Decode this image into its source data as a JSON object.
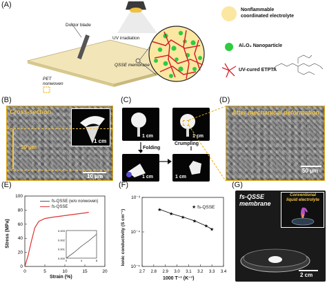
{
  "panels": {
    "a": {
      "label": "(A)",
      "doctor_blade": "Doctor blade",
      "uv": "UV irradiation",
      "qsse": "QSSE membrane",
      "pet": "PET",
      "nonwoven": "nonwoven",
      "legend": {
        "electrolyte_l1": "Nonflammable",
        "electrolyte_l2": "coordinated electrolyte",
        "nano": "Al₂O₃ Nanoparticle",
        "etpta": "UV-cured ETPTA"
      }
    },
    "b": {
      "label": "(B)",
      "title": "Cross-section",
      "inset_scale": "1 cm",
      "thickness": "~ 30 μm",
      "scale": "10 μm"
    },
    "c": {
      "label": "(C)",
      "folding": "Folding",
      "crumpling": "Crumpling",
      "scales": [
        "1 cm",
        "1 cm",
        "1 cm",
        "1 cm"
      ]
    },
    "d": {
      "label": "(D)",
      "title": "After mechanical deformation",
      "scale": "50 μm"
    },
    "e": {
      "label": "(E)",
      "legend": [
        "fs-QSSE (w/o nonwoven)",
        "fs-QSSE"
      ],
      "ylabel": "Stress (MPa)",
      "xlabel": "Strain (%)",
      "yticks": [
        "0",
        "20",
        "40",
        "60",
        "80",
        "100"
      ],
      "xticks": [
        "0",
        "5",
        "10",
        "15",
        "20"
      ],
      "inset_yticks": [
        "0.003",
        "0.002",
        "0.001",
        "0.000"
      ],
      "inset_xticks": [
        "0",
        "4",
        "8"
      ]
    },
    "f": {
      "label": "(F)",
      "legend": "fs-QSSE",
      "ylabel": "Ionic conductivity (S cm⁻¹)",
      "xlabel": "1000 T⁻¹ (K⁻¹)",
      "yticks": [
        "10⁻³",
        "10⁻⁴",
        "10⁻⁵"
      ],
      "xticks": [
        "2.7",
        "2.8",
        "2.9",
        "3.0",
        "3.1",
        "3.2",
        "3.3",
        "3.4"
      ]
    },
    "g": {
      "label": "(G)",
      "membrane_l1": "fs-QSSE",
      "membrane_l2": "membrane",
      "conv_l1": "Conventional",
      "conv_l2": "liquid electrolyte",
      "scale": "2 cm"
    }
  },
  "chart_data": [
    {
      "type": "line",
      "panel": "E",
      "xlabel": "Strain (%)",
      "ylabel": "Stress (MPa)",
      "xlim": [
        0,
        20
      ],
      "ylim": [
        0,
        100
      ],
      "series": [
        {
          "name": "fs-QSSE",
          "color": "#e03030",
          "x": [
            0,
            0.8,
            1.6,
            2.5,
            3.5,
            5,
            7,
            9,
            11,
            13,
            15,
            16
          ],
          "y": [
            0,
            15,
            35,
            55,
            64,
            68,
            70,
            71.5,
            73,
            74.5,
            76,
            77
          ]
        },
        {
          "name": "fs-QSSE (w/o nonwoven)",
          "color": "#555555",
          "x": [
            0,
            0.2
          ],
          "y": [
            0,
            0.003
          ]
        }
      ],
      "inset": {
        "xlim": [
          0,
          8
        ],
        "ylim": [
          0,
          0.003
        ],
        "x": [
          0,
          2,
          4,
          6,
          8
        ],
        "y": [
          0,
          0.0006,
          0.0013,
          0.0019,
          0.0026
        ]
      }
    },
    {
      "type": "scatter",
      "panel": "F",
      "xlabel": "1000 T⁻¹ (K⁻¹)",
      "ylabel": "Ionic conductivity (S cm⁻¹)",
      "xlim": [
        2.7,
        3.4
      ],
      "ylim": [
        1e-05,
        0.001
      ],
      "log_y": true,
      "series": [
        {
          "name": "fs-QSSE",
          "color": "#000000",
          "x": [
            2.85,
            2.95,
            3.05,
            3.15,
            3.25,
            3.3
          ],
          "y": [
            0.00045,
            0.00034,
            0.00027,
            0.00021,
            0.00015,
            0.00012
          ]
        }
      ]
    }
  ],
  "colors": {
    "gold": "#f5c542",
    "red": "#e03030",
    "green": "#2ecc40",
    "cream": "#fbe7a1"
  }
}
